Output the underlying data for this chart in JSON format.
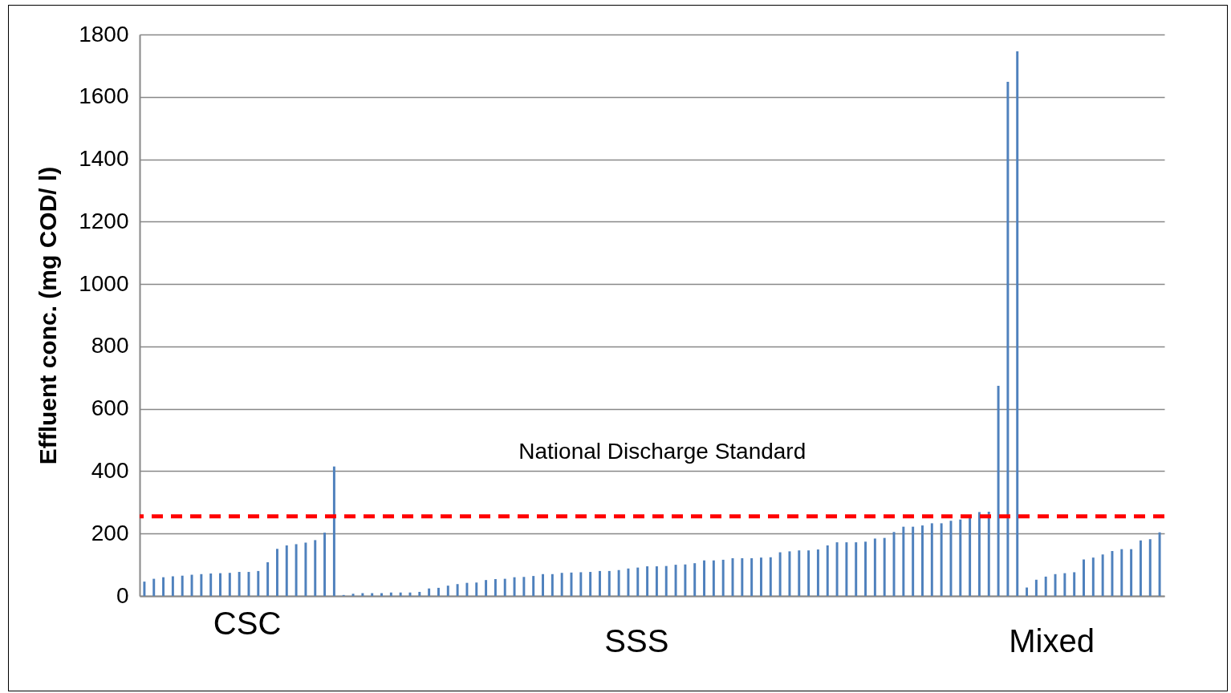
{
  "chart_data": {
    "type": "bar",
    "ylabel": "Effluent conc. (mg  COD/ l)",
    "categories": [
      null,
      null,
      null,
      null,
      null,
      null,
      null,
      null,
      null,
      null,
      null,
      null,
      null,
      null,
      null,
      null,
      null,
      null,
      null,
      null,
      null,
      null,
      null,
      null,
      null,
      null,
      null,
      null,
      null,
      null,
      null,
      null,
      null,
      null,
      null,
      null,
      null,
      null,
      null,
      null,
      null,
      null,
      null,
      null,
      null,
      null,
      null,
      null,
      null,
      null,
      null,
      null,
      null,
      null,
      null,
      null,
      null,
      null,
      null,
      null,
      null,
      null,
      null,
      null,
      null,
      null,
      null,
      null,
      null,
      null,
      null,
      null,
      null,
      null,
      null,
      null,
      null,
      null,
      null,
      null,
      null,
      null,
      null,
      null,
      null,
      null,
      null,
      null,
      null,
      null,
      null,
      null,
      null,
      null,
      null,
      null,
      null,
      null,
      null,
      null,
      null,
      null,
      null,
      null,
      null,
      null,
      null,
      null
    ],
    "values": [
      46,
      55,
      60,
      63,
      65,
      68,
      70,
      72,
      73,
      74,
      77,
      77,
      80,
      108,
      151,
      162,
      166,
      171,
      179,
      203,
      415,
      3,
      7,
      9,
      9,
      9,
      11,
      11,
      11,
      13,
      24,
      26,
      33,
      38,
      42,
      43,
      51,
      54,
      55,
      60,
      61,
      64,
      70,
      70,
      74,
      75,
      76,
      77,
      80,
      80,
      83,
      88,
      91,
      95,
      95,
      96,
      100,
      101,
      105,
      114,
      114,
      116,
      121,
      121,
      121,
      123,
      124,
      140,
      143,
      146,
      146,
      149,
      162,
      172,
      172,
      172,
      174,
      184,
      186,
      205,
      222,
      222,
      226,
      233,
      233,
      241,
      245,
      252,
      269,
      270,
      674,
      1648,
      1746,
      27,
      52,
      62,
      70,
      73,
      76,
      117,
      123,
      133,
      144,
      150,
      150,
      178,
      182,
      204
    ],
    "color": "#4f81bd",
    "ylim": [
      0,
      1800
    ],
    "yticks": [
      0,
      200,
      400,
      600,
      800,
      1000,
      1200,
      1400,
      1600,
      1800
    ],
    "grid": "y",
    "tick_labels": "y",
    "ref_lines": [
      {
        "axis": "y",
        "value": 255,
        "label": "National Discharge Standard",
        "color": "#ff0000",
        "line_style": "dashed"
      }
    ],
    "annotations": [
      "CSC",
      "SSS",
      "Mixed"
    ]
  }
}
